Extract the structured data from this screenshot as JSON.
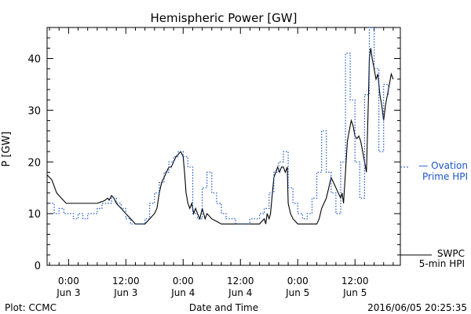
{
  "chart_data": {
    "type": "line",
    "title": "Hemispheric Power [GW]",
    "xlabel": "Date and Time",
    "ylabel": "P [GW]",
    "x_unit": "hours since 2016-06-03 00:00",
    "xlim": [
      -4.5,
      69.5
    ],
    "ylim": [
      0,
      46
    ],
    "y_ticks": [
      0,
      10,
      20,
      30,
      40
    ],
    "x_ticks": [
      {
        "x": 0,
        "time": "0:00",
        "date": "Jun 3"
      },
      {
        "x": 12,
        "time": "12:00",
        "date": "Jun 3"
      },
      {
        "x": 24,
        "time": "0:00",
        "date": "Jun 4"
      },
      {
        "x": 36,
        "time": "12:00",
        "date": "Jun 4"
      },
      {
        "x": 48,
        "time": "0:00",
        "date": "Jun 5"
      },
      {
        "x": 60,
        "time": "12:00",
        "date": "Jun 5"
      }
    ],
    "grid": false,
    "legend_position": "right",
    "series": [
      {
        "name": "SWPC 5-min HPI",
        "legend_lines": [
          "SWPC",
          "5-min HPI"
        ],
        "color": "#000000",
        "style": "solid",
        "points": [
          [
            -4.5,
            17.5
          ],
          [
            -3.5,
            16.5
          ],
          [
            -2.5,
            14
          ],
          [
            -1.5,
            13
          ],
          [
            -0.5,
            12
          ],
          [
            1.5,
            12
          ],
          [
            3,
            12
          ],
          [
            4.5,
            12
          ],
          [
            6,
            12
          ],
          [
            7.5,
            12.5
          ],
          [
            8.2,
            13
          ],
          [
            8.5,
            12.6
          ],
          [
            9,
            13.5
          ],
          [
            9.5,
            13
          ],
          [
            10,
            12
          ],
          [
            11,
            11
          ],
          [
            12,
            10
          ],
          [
            13,
            9
          ],
          [
            14,
            8
          ],
          [
            15,
            8
          ],
          [
            16,
            8
          ],
          [
            17,
            9
          ],
          [
            18,
            10
          ],
          [
            18.5,
            11
          ],
          [
            19,
            14
          ],
          [
            19.5,
            16
          ],
          [
            20,
            17
          ],
          [
            20.5,
            18
          ],
          [
            21,
            19
          ],
          [
            21.5,
            19
          ],
          [
            22,
            20
          ],
          [
            22.5,
            21
          ],
          [
            23,
            21.5
          ],
          [
            23.5,
            22
          ],
          [
            24,
            21
          ],
          [
            24.3,
            18
          ],
          [
            24.6,
            14
          ],
          [
            25,
            12
          ],
          [
            25.4,
            11
          ],
          [
            25.8,
            12
          ],
          [
            26.2,
            10
          ],
          [
            26.6,
            11
          ],
          [
            27,
            10
          ],
          [
            27.5,
            9
          ],
          [
            28,
            11
          ],
          [
            28.3,
            10
          ],
          [
            28.6,
            9
          ],
          [
            29,
            10
          ],
          [
            30,
            9
          ],
          [
            31,
            8.5
          ],
          [
            32,
            8
          ],
          [
            33,
            8
          ],
          [
            34,
            8
          ],
          [
            35,
            8
          ],
          [
            36,
            8
          ],
          [
            37,
            8
          ],
          [
            38,
            8
          ],
          [
            39,
            8
          ],
          [
            40,
            8
          ],
          [
            40.5,
            8.5
          ],
          [
            41,
            9
          ],
          [
            41.3,
            8
          ],
          [
            41.6,
            10
          ],
          [
            42,
            9
          ],
          [
            42.3,
            10
          ],
          [
            42.6,
            13
          ],
          [
            43,
            17
          ],
          [
            43.4,
            18
          ],
          [
            43.8,
            19
          ],
          [
            44.2,
            18
          ],
          [
            44.6,
            19
          ],
          [
            45,
            19
          ],
          [
            45.4,
            18
          ],
          [
            45.8,
            19
          ],
          [
            46,
            12
          ],
          [
            46.5,
            10
          ],
          [
            47,
            9
          ],
          [
            48,
            8
          ],
          [
            49,
            8
          ],
          [
            50,
            8
          ],
          [
            51,
            8
          ],
          [
            52,
            8
          ],
          [
            52.5,
            9
          ],
          [
            53,
            11
          ],
          [
            53.5,
            12
          ],
          [
            54,
            13
          ],
          [
            54.5,
            15
          ],
          [
            55,
            17
          ],
          [
            55.5,
            16
          ],
          [
            56,
            15
          ],
          [
            56.5,
            14
          ],
          [
            57,
            13
          ],
          [
            57.3,
            14
          ],
          [
            57.6,
            12
          ],
          [
            58,
            18
          ],
          [
            58.4,
            24
          ],
          [
            58.8,
            26
          ],
          [
            59.2,
            28
          ],
          [
            59.6,
            27
          ],
          [
            60,
            25
          ],
          [
            60.4,
            24.5
          ],
          [
            60.8,
            25
          ],
          [
            61.2,
            24
          ],
          [
            61.6,
            22
          ],
          [
            62,
            20
          ],
          [
            62.4,
            18
          ],
          [
            62.8,
            32
          ],
          [
            63,
            40
          ],
          [
            63.3,
            42
          ],
          [
            63.6,
            40
          ],
          [
            64,
            38
          ],
          [
            64.4,
            36
          ],
          [
            64.8,
            37
          ],
          [
            65.2,
            33
          ],
          [
            65.6,
            31
          ],
          [
            66,
            28
          ],
          [
            66.4,
            31
          ],
          [
            66.8,
            33
          ],
          [
            67.2,
            35
          ],
          [
            67.6,
            37
          ],
          [
            68,
            36
          ]
        ]
      },
      {
        "name": "Ovation Prime HPI",
        "legend_lines": [
          "— Ovation",
          "Prime HPI"
        ],
        "color": "#1a56c8",
        "style": "dotted",
        "points": [
          [
            -4,
            12
          ],
          [
            -3,
            10
          ],
          [
            -2,
            11
          ],
          [
            -1,
            10
          ],
          [
            0,
            10
          ],
          [
            1,
            9
          ],
          [
            2,
            10
          ],
          [
            3,
            9
          ],
          [
            4,
            10
          ],
          [
            5,
            10
          ],
          [
            6,
            11
          ],
          [
            7,
            12
          ],
          [
            8,
            12
          ],
          [
            9,
            13
          ],
          [
            10,
            12
          ],
          [
            11,
            11
          ],
          [
            12,
            9
          ],
          [
            13,
            8
          ],
          [
            14,
            8
          ],
          [
            15,
            8
          ],
          [
            16,
            9
          ],
          [
            17,
            12
          ],
          [
            18,
            14
          ],
          [
            19,
            16
          ],
          [
            20,
            18
          ],
          [
            21,
            20
          ],
          [
            22,
            21
          ],
          [
            23,
            22
          ],
          [
            24,
            21
          ],
          [
            25,
            19
          ],
          [
            26,
            10
          ],
          [
            27,
            9
          ],
          [
            28,
            15
          ],
          [
            29,
            18
          ],
          [
            30,
            14
          ],
          [
            31,
            12
          ],
          [
            32,
            10
          ],
          [
            33,
            9
          ],
          [
            34,
            9
          ],
          [
            35,
            8
          ],
          [
            36,
            8
          ],
          [
            37,
            8
          ],
          [
            38,
            9
          ],
          [
            39,
            9
          ],
          [
            40,
            10
          ],
          [
            41,
            11
          ],
          [
            42,
            14
          ],
          [
            43,
            18
          ],
          [
            44,
            20
          ],
          [
            45,
            22
          ],
          [
            46,
            15
          ],
          [
            47,
            12
          ],
          [
            48,
            10
          ],
          [
            49,
            9
          ],
          [
            50,
            10
          ],
          [
            51,
            13
          ],
          [
            52,
            18
          ],
          [
            53,
            26
          ],
          [
            54,
            18
          ],
          [
            55,
            14
          ],
          [
            56,
            10
          ],
          [
            57,
            20
          ],
          [
            58,
            41
          ],
          [
            59,
            32
          ],
          [
            60,
            20
          ],
          [
            61,
            13
          ],
          [
            62,
            33
          ],
          [
            63,
            46
          ],
          [
            64,
            38
          ],
          [
            65,
            22
          ],
          [
            66,
            35
          ],
          [
            67,
            33
          ]
        ]
      }
    ]
  },
  "footer": {
    "left": "Plot: CCMC",
    "right": "2016/06/05 20:25:35"
  }
}
